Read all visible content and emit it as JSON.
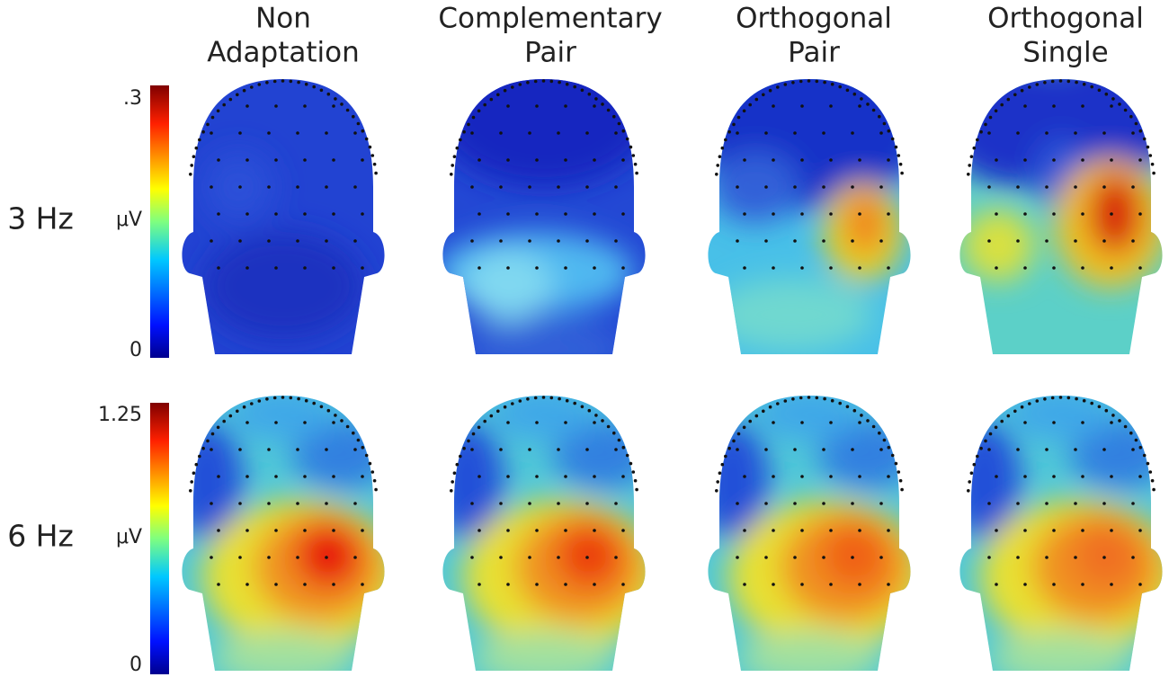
{
  "columns": [
    {
      "line1": "Non",
      "line2": "Adaptation"
    },
    {
      "line1": "Complementary",
      "line2": "Pair"
    },
    {
      "line1": "Orthogonal",
      "line2": "Pair"
    },
    {
      "line1": "Orthogonal",
      "line2": "Single"
    }
  ],
  "rows": [
    {
      "label": "3 Hz",
      "colorbar": {
        "max": ".3",
        "unit": "μV",
        "min": "0"
      }
    },
    {
      "label": "6 Hz",
      "colorbar": {
        "max": "1.25",
        "unit": "μV",
        "min": "0"
      }
    }
  ]
}
